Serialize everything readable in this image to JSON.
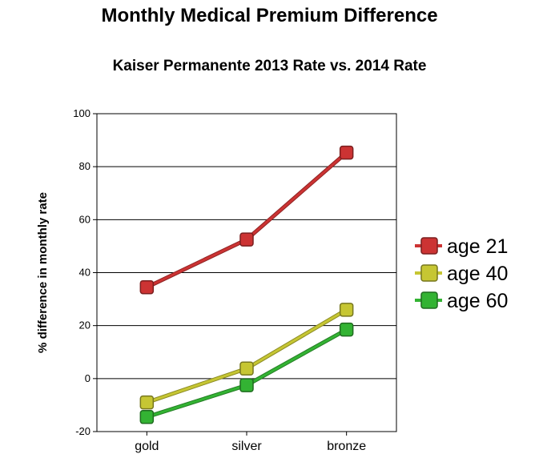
{
  "chart_data": {
    "type": "line",
    "title": "Monthly Medical Premium Difference",
    "subtitle": "Kaiser Permanente 2013 Rate vs. 2014 Rate",
    "xlabel": "",
    "ylabel": "% difference in monthly rate",
    "categories": [
      "gold",
      "silver",
      "bronze"
    ],
    "ylim": [
      -20,
      100
    ],
    "yticks": [
      "-20",
      "0",
      "20",
      "40",
      "60",
      "80",
      "100"
    ],
    "grid": true,
    "legend_position": "right",
    "series": [
      {
        "name": "age 21",
        "values": [
          34.5,
          52.5,
          85.3
        ],
        "color": "#cc3333"
      },
      {
        "name": "age 40",
        "values": [
          -9.0,
          3.8,
          26.0
        ],
        "color": "#c6c633"
      },
      {
        "name": "age 60",
        "values": [
          -14.5,
          -2.5,
          18.5
        ],
        "color": "#33b333"
      }
    ]
  }
}
